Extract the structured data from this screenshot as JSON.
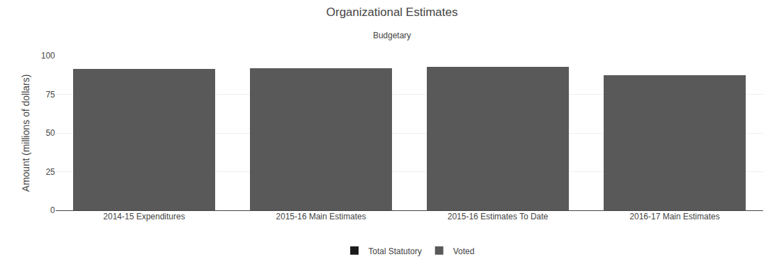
{
  "chart_data": {
    "type": "bar",
    "title": "Organizational Estimates",
    "subtitle": "Budgetary",
    "categories": [
      "2014-15 Expenditures",
      "2015-16 Main Estimates",
      "2015-16 Estimates To Date",
      "2016-17 Main Estimates"
    ],
    "series": [
      {
        "name": "Total Statutory",
        "color": "#1a1a1a",
        "values": [
          0.0,
          0.0,
          0.0,
          0.0
        ]
      },
      {
        "name": "Voted",
        "color": "#595959",
        "values": [
          91.5,
          92.0,
          92.8,
          87.5
        ]
      }
    ],
    "stacked": true,
    "ylabel": "Amount (millions of dollars)",
    "ylim": [
      0,
      100
    ],
    "yticks": [
      0,
      25,
      50,
      75,
      100
    ],
    "grid": true,
    "legend": "bottom"
  }
}
